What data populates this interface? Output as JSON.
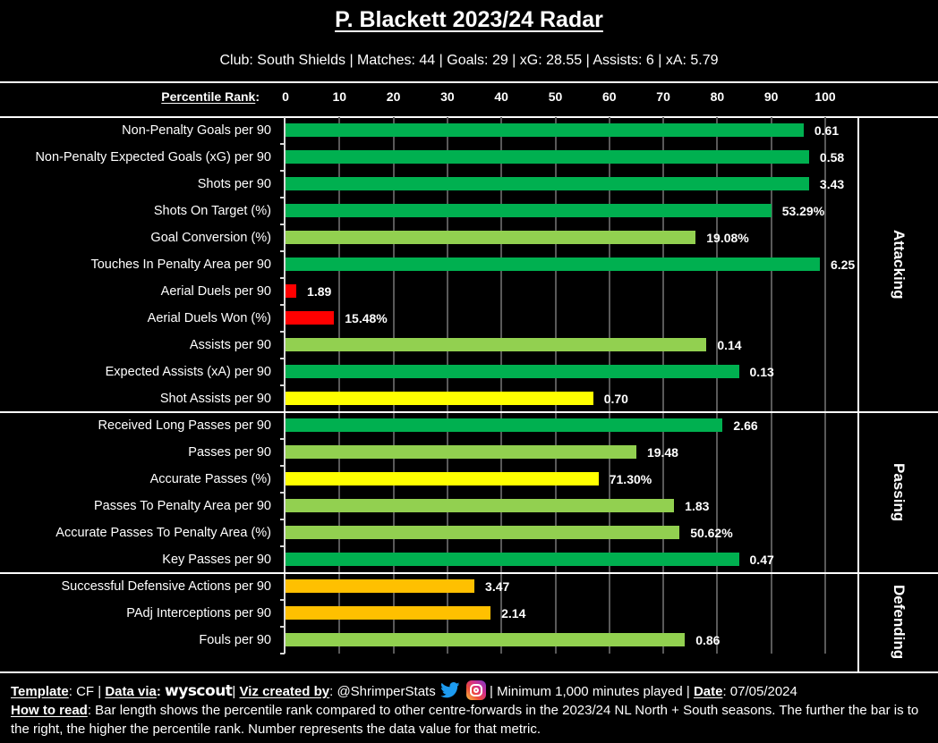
{
  "header": {
    "title": "P. Blackett 2023/24 Radar",
    "subtitle": "Club: South Shields | Matches: 44 | Goals: 29 | xG: 28.55 | Assists: 6 | xA: 5.79"
  },
  "colors": {
    "dark_green": "#00b050",
    "light_green": "#92d050",
    "yellow": "#ffff00",
    "orange": "#ffc000",
    "red": "#ff0000"
  },
  "chart_data": {
    "type": "bar",
    "orientation": "horizontal",
    "title": "P. Blackett 2023/24 Radar",
    "xlabel": "Percentile Rank",
    "xlabel_suffix": ":",
    "xlim": [
      0,
      100
    ],
    "xticks": [
      "0",
      "10",
      "20",
      "30",
      "40",
      "50",
      "60",
      "70",
      "80",
      "90",
      "100"
    ],
    "grid": true,
    "sections": [
      {
        "name": "Attacking",
        "rows": 11
      },
      {
        "name": "Passing",
        "rows": 6
      },
      {
        "name": "Defending",
        "rows": 3
      }
    ],
    "rows": [
      {
        "label": "Non-Penalty Goals per 90",
        "percentile": 96,
        "value_label": "0.61",
        "color": "#00b050"
      },
      {
        "label": "Non-Penalty Expected Goals (xG) per 90",
        "percentile": 97,
        "value_label": "0.58",
        "color": "#00b050"
      },
      {
        "label": "Shots per 90",
        "percentile": 97,
        "value_label": "3.43",
        "color": "#00b050"
      },
      {
        "label": "Shots On Target (%)",
        "percentile": 90,
        "value_label": "53.29%",
        "color": "#00b050"
      },
      {
        "label": "Goal Conversion (%)",
        "percentile": 76,
        "value_label": "19.08%",
        "color": "#92d050"
      },
      {
        "label": "Touches In Penalty Area per 90",
        "percentile": 99,
        "value_label": "6.25",
        "color": "#00b050"
      },
      {
        "label": "Aerial Duels per 90",
        "percentile": 2,
        "value_label": "1.89",
        "color": "#ff0000"
      },
      {
        "label": "Aerial Duels Won (%)",
        "percentile": 9,
        "value_label": "15.48%",
        "color": "#ff0000"
      },
      {
        "label": "Assists per 90",
        "percentile": 78,
        "value_label": "0.14",
        "color": "#92d050"
      },
      {
        "label": "Expected Assists (xA) per 90",
        "percentile": 84,
        "value_label": "0.13",
        "color": "#00b050"
      },
      {
        "label": "Shot Assists per 90",
        "percentile": 57,
        "value_label": "0.70",
        "color": "#ffff00"
      },
      {
        "label": "Received Long Passes per 90",
        "percentile": 81,
        "value_label": "2.66",
        "color": "#00b050"
      },
      {
        "label": "Passes per 90",
        "percentile": 65,
        "value_label": "19.48",
        "color": "#92d050"
      },
      {
        "label": "Accurate Passes (%)",
        "percentile": 58,
        "value_label": "71.30%",
        "color": "#ffff00"
      },
      {
        "label": "Passes To Penalty Area per 90",
        "percentile": 72,
        "value_label": "1.83",
        "color": "#92d050"
      },
      {
        "label": "Accurate Passes To Penalty Area (%)",
        "percentile": 73,
        "value_label": "50.62%",
        "color": "#92d050"
      },
      {
        "label": "Key Passes per 90",
        "percentile": 84,
        "value_label": "0.47",
        "color": "#00b050"
      },
      {
        "label": "Successful Defensive Actions per 90",
        "percentile": 35,
        "value_label": "3.47",
        "color": "#ffc000"
      },
      {
        "label": "PAdj Interceptions per 90",
        "percentile": 38,
        "value_label": "2.14",
        "color": "#ffc000"
      },
      {
        "label": "Fouls per 90",
        "percentile": 74,
        "value_label": "0.86",
        "color": "#92d050"
      }
    ]
  },
  "footer": {
    "template_label": "Template",
    "template_value": ": CF | ",
    "data_via_label": "Data via",
    "data_via_sep": ": ",
    "data_source_logo": "wyscout",
    "viz_sep": "| ",
    "viz_label": "Viz created by",
    "viz_value": ": @ShrimperStats ",
    "twitter_icon": "twitter-icon",
    "instagram_icon": "instagram-icon",
    "minimum_text": " | Minimum 1,000 minutes played | ",
    "date_label": "Date",
    "date_value": ": 07/05/2024",
    "how_to_read_label": "How to read",
    "how_to_read_text": ": Bar length shows the percentile rank compared to other centre-forwards in the 2023/24 NL North + South seasons. The further the bar is to the right, the higher the percentile rank. Number represents the data value for that metric."
  }
}
